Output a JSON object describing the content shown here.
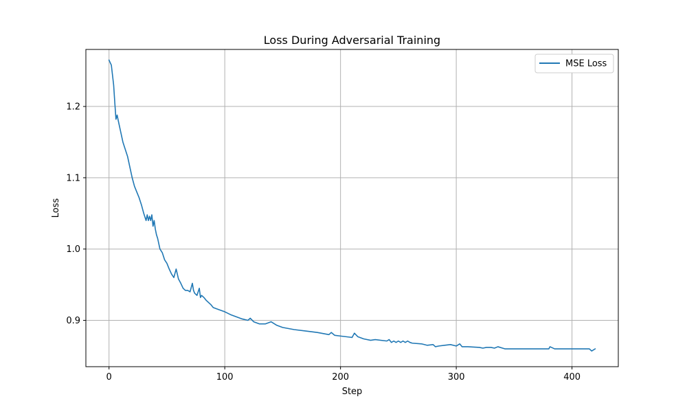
{
  "chart_data": {
    "type": "line",
    "title": "Loss During Adversarial Training",
    "xlabel": "Step",
    "ylabel": "Loss",
    "xlim": [
      -20,
      440
    ],
    "ylim": [
      0.835,
      1.28
    ],
    "xticks": [
      0,
      100,
      200,
      300,
      400
    ],
    "yticks": [
      0.9,
      1.0,
      1.1,
      1.2
    ],
    "xtick_labels": [
      "0",
      "100",
      "200",
      "300",
      "400"
    ],
    "ytick_labels": [
      "0.9",
      "1.0",
      "1.1",
      "1.2"
    ],
    "grid": true,
    "legend_position": "top-right",
    "series": [
      {
        "name": "MSE Loss",
        "color": "#1f77b4",
        "x": [
          0,
          2,
          4,
          5,
          6,
          7,
          8,
          10,
          12,
          14,
          16,
          18,
          20,
          22,
          24,
          26,
          28,
          30,
          32,
          33,
          34,
          35,
          36,
          37,
          38,
          39,
          40,
          41,
          42,
          44,
          46,
          48,
          50,
          52,
          54,
          56,
          58,
          59,
          60,
          62,
          64,
          66,
          68,
          70,
          72,
          73,
          74,
          76,
          78,
          79,
          80,
          82,
          84,
          86,
          88,
          90,
          95,
          100,
          105,
          110,
          115,
          120,
          122,
          125,
          130,
          135,
          140,
          145,
          150,
          160,
          170,
          180,
          190,
          192,
          195,
          200,
          210,
          212,
          215,
          220,
          226,
          230,
          240,
          242,
          244,
          246,
          248,
          250,
          252,
          254,
          256,
          258,
          260,
          262,
          270,
          275,
          280,
          282,
          285,
          290,
          295,
          300,
          303,
          305,
          310,
          320,
          323,
          326,
          330,
          333,
          336,
          340,
          342,
          345,
          350,
          360,
          370,
          380,
          381,
          385,
          390,
          400,
          410,
          415,
          417,
          420
        ],
        "y": [
          1.265,
          1.258,
          1.23,
          1.205,
          1.182,
          1.188,
          1.18,
          1.165,
          1.15,
          1.14,
          1.13,
          1.115,
          1.1,
          1.088,
          1.08,
          1.072,
          1.062,
          1.05,
          1.04,
          1.048,
          1.04,
          1.046,
          1.04,
          1.048,
          1.032,
          1.04,
          1.028,
          1.02,
          1.015,
          1.0,
          0.995,
          0.985,
          0.98,
          0.972,
          0.965,
          0.96,
          0.972,
          0.965,
          0.958,
          0.952,
          0.945,
          0.942,
          0.942,
          0.94,
          0.952,
          0.942,
          0.938,
          0.935,
          0.945,
          0.932,
          0.935,
          0.932,
          0.928,
          0.925,
          0.922,
          0.918,
          0.915,
          0.912,
          0.908,
          0.905,
          0.902,
          0.9,
          0.903,
          0.898,
          0.895,
          0.895,
          0.898,
          0.893,
          0.89,
          0.887,
          0.885,
          0.883,
          0.88,
          0.883,
          0.879,
          0.878,
          0.876,
          0.882,
          0.877,
          0.874,
          0.872,
          0.873,
          0.871,
          0.873,
          0.869,
          0.871,
          0.869,
          0.871,
          0.869,
          0.871,
          0.869,
          0.871,
          0.869,
          0.868,
          0.867,
          0.865,
          0.866,
          0.863,
          0.864,
          0.865,
          0.866,
          0.864,
          0.867,
          0.863,
          0.863,
          0.862,
          0.861,
          0.862,
          0.862,
          0.861,
          0.863,
          0.861,
          0.86,
          0.86,
          0.86,
          0.86,
          0.86,
          0.86,
          0.863,
          0.86,
          0.86,
          0.86,
          0.86,
          0.86,
          0.857,
          0.86
        ]
      }
    ]
  }
}
